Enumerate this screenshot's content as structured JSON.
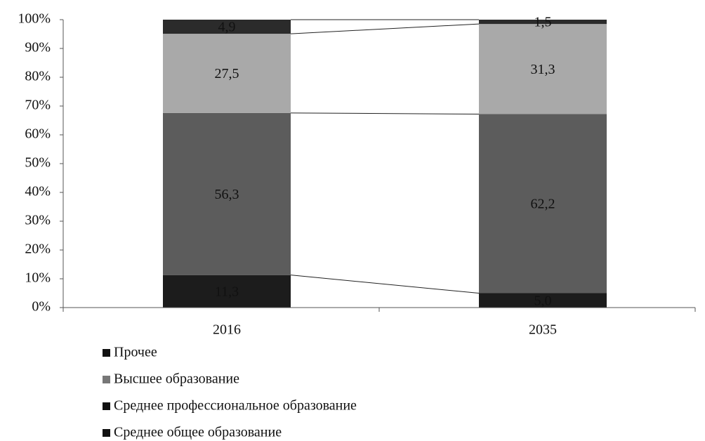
{
  "chart_data": {
    "type": "stacked_bar",
    "categories": [
      "2016",
      "2035"
    ],
    "series": [
      {
        "name": "Среднее общее образование",
        "color": "#1c1c1c",
        "values": [
          11.3,
          5.0
        ],
        "value_labels": [
          "11,3",
          "5,0"
        ]
      },
      {
        "name": "Среднее профессиональное образование",
        "color": "#5c5c5c",
        "values": [
          56.3,
          62.2
        ],
        "value_labels": [
          "56,3",
          "62,2"
        ]
      },
      {
        "name": "Высшее образование",
        "color": "#a9a9a9",
        "values": [
          27.5,
          31.3
        ],
        "value_labels": [
          "27,5",
          "31,3"
        ]
      },
      {
        "name": "Прочее",
        "color": "#2b2b2b",
        "values": [
          4.9,
          1.5
        ],
        "value_labels": [
          "4,9",
          "1,5"
        ]
      }
    ],
    "ylim": [
      0,
      100
    ],
    "yticks": [
      {
        "value": 0,
        "label": "0%"
      },
      {
        "value": 10,
        "label": "10%"
      },
      {
        "value": 20,
        "label": "20%"
      },
      {
        "value": 30,
        "label": "30%"
      },
      {
        "value": 40,
        "label": "40%"
      },
      {
        "value": 50,
        "label": "50%"
      },
      {
        "value": 60,
        "label": "60%"
      },
      {
        "value": 70,
        "label": "70%"
      },
      {
        "value": 80,
        "label": "80%"
      },
      {
        "value": 90,
        "label": "90%"
      },
      {
        "value": 100,
        "label": "100%"
      }
    ],
    "series_lines": true
  }
}
